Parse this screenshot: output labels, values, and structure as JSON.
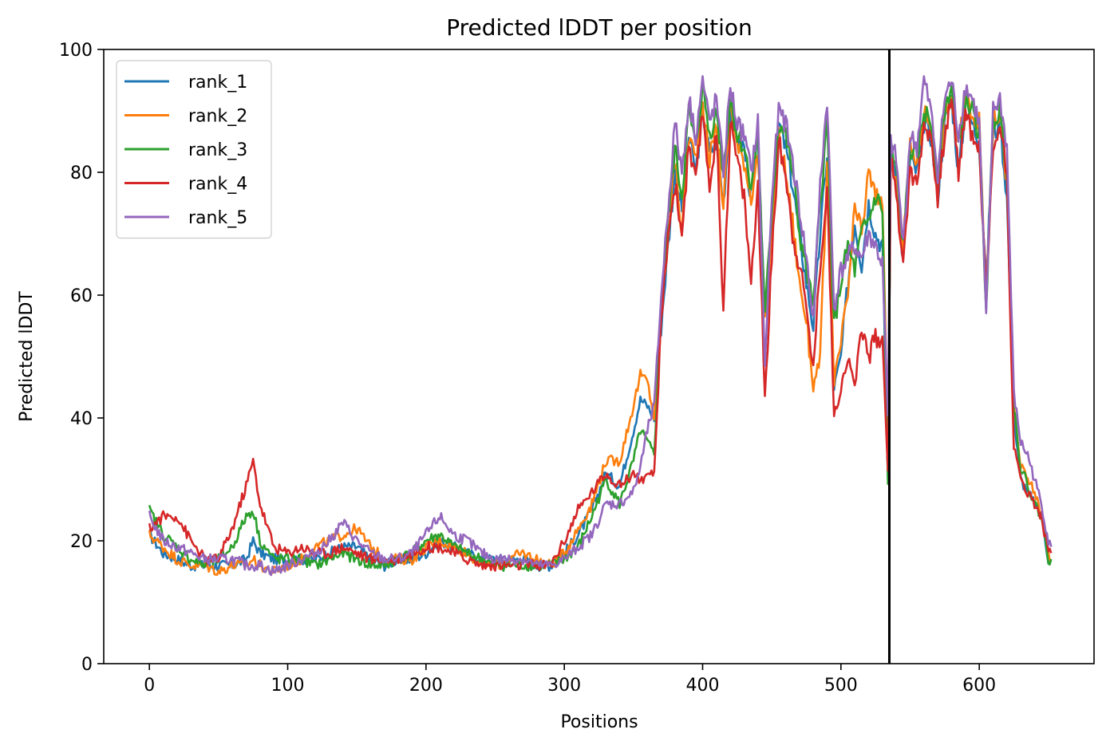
{
  "chart_data": {
    "type": "line",
    "title": "Predicted lDDT per position",
    "xlabel": "Positions",
    "ylabel": "Predicted lDDT",
    "xlim": [
      -33,
      683
    ],
    "ylim": [
      0,
      100
    ],
    "xticks": [
      0,
      100,
      200,
      300,
      400,
      500,
      600
    ],
    "yticks": [
      0,
      20,
      40,
      60,
      80,
      100
    ],
    "legend_position": "upper-left",
    "chain_break": 535,
    "series": [
      {
        "name": "rank_1",
        "color": "#1f77b4",
        "x": [
          0,
          10,
          20,
          30,
          40,
          50,
          60,
          70,
          75,
          80,
          90,
          100,
          110,
          120,
          130,
          140,
          150,
          160,
          170,
          180,
          190,
          200,
          210,
          220,
          230,
          240,
          250,
          260,
          270,
          280,
          290,
          300,
          310,
          320,
          330,
          340,
          350,
          355,
          360,
          365,
          370,
          375,
          380,
          385,
          390,
          395,
          400,
          405,
          410,
          415,
          420,
          425,
          430,
          435,
          440,
          445,
          450,
          455,
          460,
          465,
          470,
          475,
          480,
          485,
          490,
          495,
          500,
          505,
          510,
          515,
          520,
          525,
          530,
          534,
          536,
          540,
          545,
          550,
          555,
          560,
          565,
          570,
          575,
          580,
          585,
          590,
          595,
          600,
          605,
          610,
          615,
          620,
          625,
          630,
          635,
          640,
          645,
          650,
          652
        ],
        "y": [
          21,
          18,
          17,
          16,
          16,
          16,
          16,
          17,
          20,
          18,
          17,
          17,
          17,
          17,
          18,
          19,
          19,
          17,
          16,
          17,
          17,
          18,
          20,
          19,
          18,
          17,
          17,
          17,
          17,
          16,
          16,
          18,
          21,
          25,
          31,
          29,
          38,
          43,
          42,
          40,
          55,
          68,
          80,
          74,
          86,
          80,
          90,
          83,
          85,
          75,
          90,
          86,
          84,
          76,
          85,
          55,
          72,
          88,
          84,
          78,
          70,
          62,
          55,
          70,
          83,
          45,
          50,
          62,
          72,
          65,
          75,
          70,
          68,
          30,
          84,
          80,
          65,
          82,
          80,
          88,
          86,
          76,
          88,
          92,
          80,
          90,
          88,
          85,
          62,
          86,
          88,
          76,
          40,
          30,
          28,
          26,
          24,
          17,
          17
        ]
      },
      {
        "name": "rank_2",
        "color": "#ff7f0e",
        "x": [
          0,
          10,
          20,
          30,
          40,
          50,
          60,
          70,
          75,
          80,
          90,
          100,
          110,
          120,
          130,
          140,
          150,
          160,
          170,
          180,
          190,
          200,
          210,
          220,
          230,
          240,
          250,
          260,
          270,
          280,
          290,
          300,
          310,
          320,
          330,
          340,
          350,
          355,
          360,
          365,
          370,
          375,
          380,
          385,
          390,
          395,
          400,
          405,
          410,
          415,
          420,
          425,
          430,
          435,
          440,
          445,
          450,
          455,
          460,
          465,
          470,
          475,
          480,
          485,
          490,
          495,
          500,
          505,
          510,
          515,
          520,
          525,
          530,
          534,
          536,
          540,
          545,
          550,
          555,
          560,
          565,
          570,
          575,
          580,
          585,
          590,
          595,
          600,
          605,
          610,
          615,
          620,
          625,
          630,
          635,
          640,
          645,
          650,
          652
        ],
        "y": [
          21,
          19,
          17,
          16,
          16,
          15,
          16,
          16,
          17,
          16,
          15,
          16,
          17,
          19,
          20,
          21,
          22,
          19,
          17,
          17,
          17,
          19,
          20,
          19,
          18,
          16,
          16,
          17,
          18,
          17,
          16,
          18,
          22,
          26,
          33,
          33,
          42,
          47,
          46,
          40,
          56,
          70,
          82,
          70,
          86,
          82,
          92,
          82,
          88,
          74,
          92,
          84,
          82,
          76,
          83,
          55,
          70,
          86,
          80,
          72,
          62,
          56,
          45,
          50,
          80,
          46,
          52,
          60,
          74,
          70,
          80,
          76,
          76,
          33,
          82,
          78,
          68,
          84,
          82,
          90,
          88,
          78,
          90,
          92,
          84,
          92,
          90,
          88,
          60,
          88,
          90,
          78,
          42,
          32,
          30,
          28,
          24,
          18,
          17
        ]
      },
      {
        "name": "rank_3",
        "color": "#2ca02c",
        "x": [
          0,
          10,
          20,
          30,
          40,
          50,
          60,
          70,
          75,
          80,
          90,
          100,
          110,
          120,
          130,
          140,
          150,
          160,
          170,
          180,
          190,
          200,
          210,
          220,
          230,
          240,
          250,
          260,
          270,
          280,
          290,
          300,
          310,
          320,
          330,
          340,
          350,
          355,
          360,
          365,
          370,
          375,
          380,
          385,
          390,
          395,
          400,
          405,
          410,
          415,
          420,
          425,
          430,
          435,
          440,
          445,
          450,
          455,
          460,
          465,
          470,
          475,
          480,
          485,
          490,
          495,
          500,
          505,
          510,
          515,
          520,
          525,
          530,
          534,
          536,
          540,
          545,
          550,
          555,
          560,
          565,
          570,
          575,
          580,
          585,
          590,
          595,
          600,
          605,
          610,
          615,
          620,
          625,
          630,
          635,
          640,
          645,
          650,
          652
        ],
        "y": [
          25,
          21,
          19,
          17,
          16,
          17,
          19,
          24,
          25,
          20,
          17,
          17,
          17,
          16,
          17,
          18,
          17,
          16,
          16,
          17,
          18,
          20,
          21,
          19,
          18,
          17,
          16,
          16,
          16,
          16,
          16,
          17,
          19,
          24,
          30,
          26,
          33,
          38,
          36,
          34,
          58,
          72,
          84,
          76,
          90,
          84,
          94,
          86,
          90,
          80,
          92,
          86,
          84,
          78,
          86,
          56,
          74,
          88,
          86,
          80,
          70,
          64,
          58,
          75,
          88,
          55,
          62,
          68,
          64,
          70,
          72,
          76,
          74,
          29,
          84,
          80,
          68,
          84,
          82,
          90,
          88,
          78,
          90,
          94,
          84,
          92,
          90,
          86,
          58,
          88,
          90,
          80,
          42,
          32,
          29,
          26,
          24,
          17,
          17
        ]
      },
      {
        "name": "rank_4",
        "color": "#d62728",
        "x": [
          0,
          10,
          20,
          30,
          40,
          50,
          60,
          70,
          75,
          80,
          90,
          100,
          110,
          120,
          130,
          140,
          150,
          160,
          170,
          180,
          190,
          200,
          210,
          220,
          230,
          240,
          250,
          260,
          270,
          280,
          290,
          300,
          310,
          320,
          330,
          340,
          350,
          355,
          360,
          365,
          370,
          375,
          380,
          385,
          390,
          395,
          400,
          405,
          410,
          415,
          420,
          425,
          430,
          435,
          440,
          445,
          450,
          455,
          460,
          465,
          470,
          475,
          480,
          485,
          490,
          495,
          500,
          505,
          510,
          515,
          520,
          525,
          530,
          534,
          536,
          540,
          545,
          550,
          555,
          560,
          565,
          570,
          575,
          580,
          585,
          590,
          595,
          600,
          605,
          610,
          615,
          620,
          625,
          630,
          635,
          640,
          645,
          650,
          652
        ],
        "y": [
          22,
          24,
          24,
          20,
          17,
          17,
          22,
          29,
          33,
          26,
          19,
          18,
          19,
          18,
          18,
          19,
          18,
          17,
          17,
          17,
          18,
          19,
          19,
          18,
          17,
          16,
          16,
          16,
          16,
          16,
          16,
          20,
          25,
          28,
          31,
          29,
          31,
          30,
          30,
          31,
          55,
          70,
          78,
          70,
          84,
          78,
          90,
          78,
          86,
          58,
          88,
          82,
          76,
          62,
          78,
          43,
          66,
          85,
          80,
          70,
          65,
          58,
          48,
          65,
          78,
          40,
          45,
          50,
          45,
          55,
          50,
          53,
          53,
          32,
          82,
          76,
          66,
          80,
          78,
          88,
          86,
          76,
          86,
          92,
          80,
          90,
          86,
          84,
          60,
          84,
          88,
          80,
          35,
          30,
          28,
          26,
          24,
          18,
          18
        ]
      },
      {
        "name": "rank_5",
        "color": "#9467bd",
        "x": [
          0,
          10,
          20,
          30,
          40,
          50,
          60,
          70,
          75,
          80,
          90,
          100,
          110,
          120,
          130,
          140,
          150,
          160,
          170,
          180,
          190,
          200,
          210,
          220,
          230,
          240,
          250,
          260,
          270,
          280,
          290,
          300,
          310,
          320,
          330,
          340,
          350,
          355,
          360,
          365,
          370,
          375,
          380,
          385,
          390,
          395,
          400,
          405,
          410,
          415,
          420,
          425,
          430,
          435,
          440,
          445,
          450,
          455,
          460,
          465,
          470,
          475,
          480,
          485,
          490,
          495,
          500,
          505,
          510,
          515,
          520,
          525,
          530,
          534,
          536,
          540,
          545,
          550,
          555,
          560,
          565,
          570,
          575,
          580,
          585,
          590,
          595,
          600,
          605,
          610,
          615,
          620,
          625,
          630,
          635,
          640,
          645,
          650,
          652
        ],
        "y": [
          24,
          20,
          19,
          18,
          17,
          17,
          17,
          16,
          16,
          16,
          15,
          16,
          17,
          18,
          20,
          23,
          20,
          18,
          17,
          17,
          18,
          21,
          24,
          21,
          20,
          18,
          17,
          17,
          17,
          16,
          16,
          17,
          19,
          21,
          26,
          26,
          28,
          32,
          38,
          42,
          60,
          74,
          88,
          80,
          92,
          86,
          95,
          88,
          92,
          80,
          94,
          88,
          86,
          80,
          88,
          48,
          76,
          90,
          88,
          82,
          74,
          66,
          56,
          78,
          92,
          58,
          64,
          66,
          68,
          66,
          70,
          68,
          65,
          40,
          85,
          82,
          68,
          86,
          84,
          95,
          90,
          80,
          92,
          95,
          86,
          94,
          92,
          88,
          56,
          90,
          92,
          84,
          44,
          36,
          34,
          30,
          26,
          20,
          19
        ]
      }
    ]
  }
}
